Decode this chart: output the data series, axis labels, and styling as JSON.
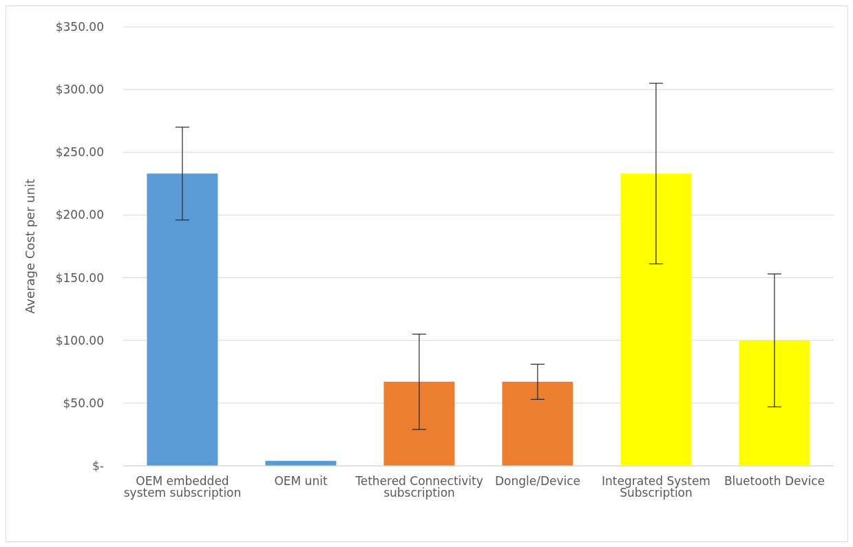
{
  "chart_data": {
    "type": "bar",
    "ylabel": "Average Cost per unit",
    "categories": [
      "OEM embedded system subscription",
      "OEM unit",
      "Tethered Connectivity subscription",
      "Dongle/Device",
      "Integrated System Subscription",
      "Bluetooth Device"
    ],
    "values": [
      233,
      4,
      67,
      67,
      233,
      100
    ],
    "errors": [
      37,
      null,
      38,
      14,
      72,
      53
    ],
    "colors": [
      "#5b9bd5",
      "#5b9bd5",
      "#ed7d31",
      "#ed7d31",
      "#ffff00",
      "#ffff00"
    ],
    "ylim": [
      0,
      350
    ],
    "yticks": [
      {
        "value": 0,
        "label": "$-"
      },
      {
        "value": 50,
        "label": "$50.00"
      },
      {
        "value": 100,
        "label": "$100.00"
      },
      {
        "value": 150,
        "label": "$150.00"
      },
      {
        "value": 200,
        "label": "$200.00"
      },
      {
        "value": 250,
        "label": "$250.00"
      },
      {
        "value": 300,
        "label": "$300.00"
      },
      {
        "value": 350,
        "label": "$350.00"
      }
    ],
    "grid": "y",
    "legend": false
  }
}
